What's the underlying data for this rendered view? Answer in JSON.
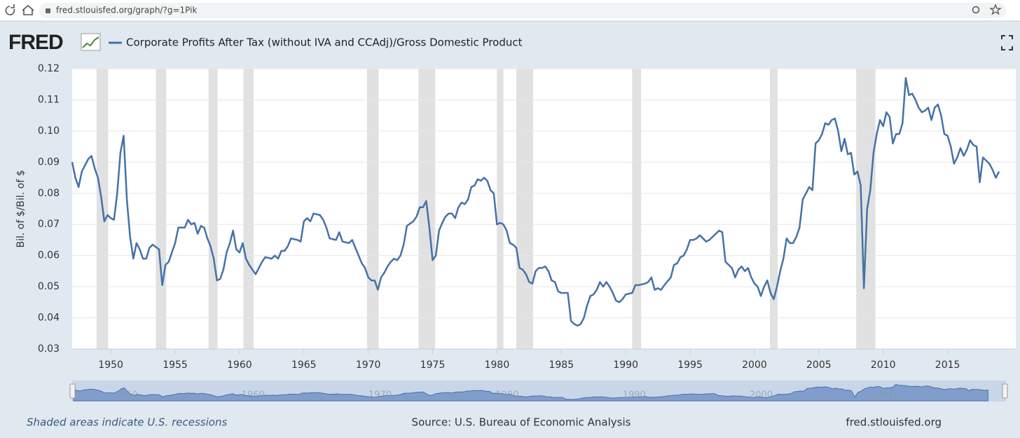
{
  "browser": {
    "url": "fred.stlouisfed.org/graph/?g=1Pik"
  },
  "logo": "FRED",
  "footer": {
    "note": "Shaded areas indicate U.S. recessions",
    "source": "Source: U.S. Bureau of Economic Analysis",
    "site": "fred.stlouisfed.org"
  },
  "chart_data": {
    "type": "line",
    "ylabel": "Bil. of $/Bil. of $",
    "xlim": [
      1947,
      2020.3
    ],
    "ylim": [
      0.03,
      0.12
    ],
    "yticks": [
      0.03,
      0.04,
      0.05,
      0.06,
      0.07,
      0.08,
      0.09,
      {
        "value": 0.1,
        "label": "0.10"
      },
      0.11,
      0.12
    ],
    "xticks": [
      1950,
      1955,
      1960,
      1965,
      1970,
      1975,
      1980,
      1985,
      1990,
      1995,
      2000,
      2005,
      2010,
      2015
    ],
    "navigator_ticks": [
      1950,
      1960,
      1970,
      1980,
      1990,
      2000,
      2010
    ],
    "grid": true,
    "recessions": [
      [
        1948.9,
        1949.8
      ],
      [
        1953.5,
        1954.3
      ],
      [
        1957.6,
        1958.3
      ],
      [
        1960.3,
        1961.1
      ],
      [
        1969.9,
        1970.8
      ],
      [
        1973.9,
        1975.2
      ],
      [
        1980.0,
        1980.5
      ],
      [
        1981.5,
        1982.8
      ],
      [
        1990.5,
        1991.2
      ],
      [
        2001.2,
        2001.8
      ],
      [
        2007.9,
        2009.4
      ]
    ],
    "x": [
      1947.0,
      1947.25,
      1947.5,
      1947.75,
      1948.25,
      1948.5,
      1948.75,
      1949.0,
      1949.25,
      1949.5,
      1949.75,
      1950.0,
      1950.25,
      1950.5,
      1950.75,
      1951.0,
      1951.25,
      1951.5,
      1951.75,
      1952.0,
      1952.25,
      1952.5,
      1952.75,
      1953.0,
      1953.25,
      1953.75,
      1954.0,
      1954.25,
      1954.5,
      1954.75,
      1955.0,
      1955.25,
      1955.75,
      1956.0,
      1956.25,
      1956.5,
      1956.75,
      1957.0,
      1957.25,
      1957.5,
      1957.75,
      1958.0,
      1958.25,
      1958.5,
      1958.75,
      1959.0,
      1959.25,
      1959.5,
      1959.75,
      1960.0,
      1960.25,
      1960.5,
      1960.75,
      1961.0,
      1961.25,
      1961.5,
      1961.75,
      1962.0,
      1962.5,
      1962.75,
      1963.0,
      1963.25,
      1963.5,
      1963.75,
      1964.0,
      1964.5,
      1964.75,
      1965.0,
      1965.25,
      1965.5,
      1965.75,
      1966.25,
      1966.5,
      1966.75,
      1967.0,
      1967.5,
      1967.75,
      1968.0,
      1968.5,
      1968.75,
      1969.0,
      1969.5,
      1969.75,
      1970.0,
      1970.25,
      1970.5,
      1970.75,
      1971.0,
      1971.25,
      1971.5,
      1971.75,
      1972.0,
      1972.25,
      1972.5,
      1972.75,
      1973.0,
      1973.5,
      1973.75,
      1974.0,
      1974.25,
      1974.5,
      1974.75,
      1975.0,
      1975.25,
      1975.5,
      1975.75,
      1976.0,
      1976.25,
      1976.5,
      1976.75,
      1977.0,
      1977.25,
      1977.5,
      1977.75,
      1978.0,
      1978.25,
      1978.5,
      1978.75,
      1979.0,
      1979.25,
      1979.5,
      1979.75,
      1980.0,
      1980.25,
      1980.5,
      1980.75,
      1981.0,
      1981.25,
      1981.5,
      1981.75,
      1982.0,
      1982.25,
      1982.5,
      1982.75,
      1983.0,
      1983.25,
      1983.5,
      1983.75,
      1984.0,
      1984.25,
      1984.5,
      1984.75,
      1985.0,
      1985.5,
      1985.75,
      1986.0,
      1986.25,
      1986.5,
      1986.75,
      1987.0,
      1987.25,
      1987.5,
      1987.75,
      1988.0,
      1988.25,
      1988.5,
      1988.75,
      1989.0,
      1989.25,
      1989.5,
      1989.75,
      1990.0,
      1990.5,
      1990.75,
      1991.0,
      1991.5,
      1991.75,
      1992.0,
      1992.25,
      1992.5,
      1992.75,
      1993.0,
      1993.5,
      1993.75,
      1994.0,
      1994.25,
      1994.5,
      1994.75,
      1995.0,
      1995.25,
      1995.5,
      1995.75,
      1996.25,
      1996.5,
      1996.75,
      1997.25,
      1997.5,
      1997.75,
      1998.0,
      1998.25,
      1998.5,
      1998.75,
      1999.0,
      1999.25,
      1999.5,
      1999.75,
      2000.0,
      2000.25,
      2000.5,
      2000.75,
      2001.0,
      2001.25,
      2001.5,
      2001.75,
      2002.0,
      2002.25,
      2002.5,
      2002.75,
      2003.0,
      2003.25,
      2003.5,
      2003.75,
      2004.0,
      2004.25,
      2004.5,
      2004.75,
      2005.0,
      2005.25,
      2005.5,
      2005.75,
      2006.0,
      2006.25,
      2006.5,
      2006.75,
      2007.0,
      2007.25,
      2007.5,
      2007.75,
      2008.0,
      2008.25,
      2008.5,
      2008.75,
      2009.0,
      2009.25,
      2009.5,
      2009.75,
      2010.0,
      2010.25,
      2010.5,
      2010.75,
      2011.0,
      2011.25,
      2011.5,
      2011.75,
      2012.0,
      2012.25,
      2012.5,
      2012.75,
      2013.0,
      2013.25,
      2013.5,
      2013.75,
      2014.0,
      2014.25,
      2014.5,
      2014.75,
      2015.0,
      2015.25,
      2015.5,
      2015.75,
      2016.0,
      2016.25,
      2016.5,
      2016.75,
      2017.0,
      2017.25,
      2017.5,
      2017.75,
      2018.0,
      2018.25,
      2018.5,
      2018.75,
      2019.0
    ],
    "series": [
      {
        "name": "Corporate Profits After Tax (without IVA and CCAdj)/Gross Domestic Product",
        "color": "#4572a7",
        "values": [
          0.09,
          0.085,
          0.082,
          0.087,
          0.091,
          0.092,
          0.088,
          0.085,
          0.079,
          0.071,
          0.073,
          0.072,
          0.0715,
          0.08,
          0.093,
          0.0985,
          0.078,
          0.066,
          0.059,
          0.064,
          0.062,
          0.059,
          0.059,
          0.0625,
          0.0635,
          0.062,
          0.0505,
          0.057,
          0.058,
          0.061,
          0.064,
          0.069,
          0.069,
          0.0715,
          0.07,
          0.0705,
          0.067,
          0.0695,
          0.069,
          0.0655,
          0.063,
          0.059,
          0.052,
          0.0525,
          0.0555,
          0.061,
          0.064,
          0.068,
          0.062,
          0.061,
          0.064,
          0.059,
          0.057,
          0.0555,
          0.054,
          0.056,
          0.058,
          0.0595,
          0.059,
          0.06,
          0.059,
          0.0615,
          0.0615,
          0.063,
          0.0655,
          0.065,
          0.0645,
          0.071,
          0.072,
          0.071,
          0.0735,
          0.073,
          0.0715,
          0.069,
          0.0655,
          0.065,
          0.0675,
          0.0645,
          0.064,
          0.065,
          0.0625,
          0.0575,
          0.056,
          0.053,
          0.052,
          0.052,
          0.049,
          0.053,
          0.0545,
          0.0565,
          0.058,
          0.059,
          0.0585,
          0.06,
          0.0635,
          0.0695,
          0.071,
          0.0725,
          0.0755,
          0.0755,
          0.0775,
          0.069,
          0.0585,
          0.06,
          0.068,
          0.0705,
          0.0725,
          0.0735,
          0.0735,
          0.072,
          0.0755,
          0.077,
          0.0765,
          0.078,
          0.082,
          0.0825,
          0.0845,
          0.084,
          0.085,
          0.084,
          0.081,
          0.08,
          0.07,
          0.0705,
          0.07,
          0.068,
          0.064,
          0.0635,
          0.0625,
          0.056,
          0.0555,
          0.054,
          0.0515,
          0.051,
          0.055,
          0.056,
          0.056,
          0.0565,
          0.055,
          0.052,
          0.0515,
          0.0485,
          0.048,
          0.048,
          0.039,
          0.038,
          0.0375,
          0.038,
          0.04,
          0.044,
          0.047,
          0.0475,
          0.049,
          0.0515,
          0.05,
          0.0515,
          0.05,
          0.048,
          0.0455,
          0.045,
          0.046,
          0.0475,
          0.048,
          0.0505,
          0.0505,
          0.051,
          0.0515,
          0.053,
          0.049,
          0.0495,
          0.049,
          0.0505,
          0.053,
          0.057,
          0.0575,
          0.0595,
          0.06,
          0.062,
          0.065,
          0.065,
          0.0655,
          0.0665,
          0.0645,
          0.065,
          0.066,
          0.068,
          0.0675,
          0.058,
          0.057,
          0.056,
          0.053,
          0.0555,
          0.0565,
          0.055,
          0.056,
          0.053,
          0.051,
          0.05,
          0.047,
          0.05,
          0.052,
          0.048,
          0.046,
          0.05,
          0.055,
          0.059,
          0.0655,
          0.064,
          0.064,
          0.066,
          0.069,
          0.078,
          0.08,
          0.082,
          0.081,
          0.096,
          0.097,
          0.099,
          0.1025,
          0.102,
          0.1035,
          0.104,
          0.1,
          0.0935,
          0.0975,
          0.0925,
          0.093,
          0.086,
          0.087,
          0.0825,
          0.0495,
          0.075,
          0.081,
          0.093,
          0.099,
          0.1035,
          0.1015,
          0.106,
          0.1045,
          0.096,
          0.099,
          0.099,
          0.1025,
          0.117,
          0.1115,
          0.112,
          0.11,
          0.1075,
          0.106,
          0.1065,
          0.1075,
          0.1035,
          0.1075,
          0.1085,
          0.105,
          0.099,
          0.0985,
          0.095,
          0.0895,
          0.0915,
          0.0945,
          0.092,
          0.094,
          0.097,
          0.0955,
          0.095,
          0.0835,
          0.0915,
          0.0905,
          0.0895,
          0.0875,
          0.085,
          0.087
        ]
      }
    ]
  }
}
